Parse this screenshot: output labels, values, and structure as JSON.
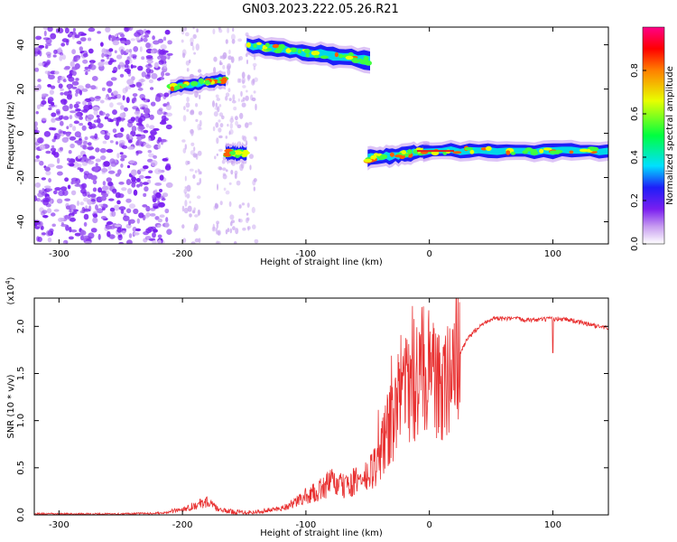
{
  "title": "GN03.2023.222.05.26.R21",
  "chart_data": [
    {
      "type": "heatmap",
      "xlabel": "Height of straight line (km)",
      "ylabel": "Frequency (Hz)",
      "xlim": [
        -320,
        145
      ],
      "ylim": [
        -50,
        48
      ],
      "xticks": [
        -300,
        -200,
        -100,
        0,
        100
      ],
      "yticks": [
        -40,
        -20,
        0,
        20,
        40
      ],
      "colorbar": {
        "label": "Normalized spectral amplitude",
        "range": [
          0.0,
          1.0
        ],
        "ticks": [
          0.0,
          0.2,
          0.4,
          0.6,
          0.8
        ],
        "colors": [
          "#ffffff",
          "#c79cf0",
          "#7a1ff0",
          "#1e1ef8",
          "#00e0ff",
          "#00ff40",
          "#e8ff00",
          "#ff8000",
          "#ff0000",
          "#ff0088"
        ]
      },
      "features": [
        {
          "x": [
            -320,
            -210
          ],
          "freq": [
            -50,
            48
          ],
          "level": 0.15
        },
        {
          "x": [
            -210,
            -165
          ],
          "freq_start": [
            18,
            23
          ],
          "freq_end": [
            22,
            27
          ],
          "level": 0.5
        },
        {
          "x": [
            -165,
            -148
          ],
          "freq": [
            -12,
            -6
          ],
          "level": 0.45
        },
        {
          "x": [
            -148,
            -48
          ],
          "freq_start": [
            37,
            43
          ],
          "freq_end": [
            29,
            37
          ],
          "level": 0.45
        },
        {
          "x": [
            -50,
            0
          ],
          "freq_start": [
            -15,
            -8
          ],
          "freq_end": [
            -11,
            -5
          ],
          "level": 0.5
        },
        {
          "x": [
            -5,
            145
          ],
          "freq": [
            -11,
            -5
          ],
          "level": 0.55
        }
      ]
    },
    {
      "type": "line",
      "xlabel": "Height of straight line (km)",
      "ylabel": "SNR (10 * v/v)",
      "scale_note": "(x10",
      "scale_exp": "4",
      "scale_close": ")",
      "xlim": [
        -320,
        145
      ],
      "ylim": [
        0,
        2.3
      ],
      "xticks": [
        -300,
        -200,
        -100,
        0,
        100
      ],
      "yticks": [
        0.0,
        0.5,
        1.0,
        1.5,
        2.0
      ],
      "series": [
        {
          "color": "#e83030",
          "x": [
            -320,
            -250,
            -215,
            -200,
            -190,
            -180,
            -170,
            -155,
            -140,
            -120,
            -110,
            -100,
            -90,
            -80,
            -70,
            -60,
            -50,
            -40,
            -35,
            -30,
            -25,
            -20,
            -15,
            -10,
            -5,
            0,
            5,
            10,
            15,
            20,
            25,
            30,
            40,
            50,
            60,
            70,
            80,
            90,
            100,
            110,
            120,
            130,
            145
          ],
          "y": [
            0.01,
            0.01,
            0.02,
            0.06,
            0.1,
            0.14,
            0.05,
            0.03,
            0.03,
            0.07,
            0.12,
            0.2,
            0.25,
            0.35,
            0.3,
            0.35,
            0.4,
            0.6,
            0.9,
            1.0,
            1.2,
            1.5,
            1.3,
            1.4,
            1.6,
            1.5,
            1.4,
            1.3,
            1.45,
            1.6,
            1.7,
            1.85,
            2.0,
            2.08,
            2.08,
            2.08,
            2.07,
            2.07,
            2.08,
            2.08,
            2.05,
            2.02,
            1.98
          ]
        }
      ]
    }
  ]
}
